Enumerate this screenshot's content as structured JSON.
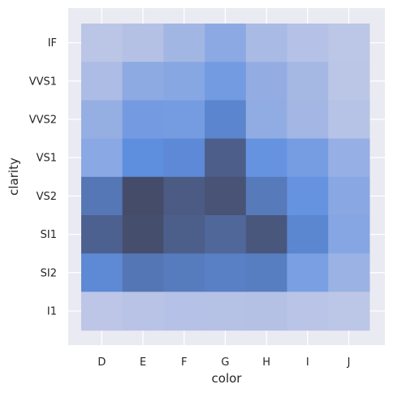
{
  "chart_data": {
    "type": "heatmap",
    "title": "",
    "xlabel": "color",
    "ylabel": "clarity",
    "x_categories": [
      "D",
      "E",
      "F",
      "G",
      "H",
      "I",
      "J"
    ],
    "y_categories": [
      "IF",
      "VVS1",
      "VVS2",
      "VS1",
      "VS2",
      "SI1",
      "SI2",
      "I1"
    ],
    "values": [
      [
        73,
        158,
        385,
        681,
        299,
        143,
        51
      ],
      [
        252,
        656,
        734,
        999,
        585,
        355,
        74
      ],
      [
        553,
        991,
        975,
        1443,
        608,
        365,
        131
      ],
      [
        705,
        1281,
        1364,
        2148,
        1169,
        962,
        542
      ],
      [
        1697,
        2470,
        2201,
        2347,
        1643,
        1169,
        731
      ],
      [
        2083,
        2426,
        2131,
        1976,
        2275,
        1424,
        750
      ],
      [
        1370,
        1713,
        1609,
        1548,
        1563,
        912,
        479
      ],
      [
        42,
        102,
        143,
        150,
        162,
        92,
        50
      ]
    ],
    "grid": true,
    "background_color": "#eaeaf2",
    "low_color": "#bdc6e6",
    "mid_color": "#5f8fe0",
    "high_color": "#454c6a"
  }
}
